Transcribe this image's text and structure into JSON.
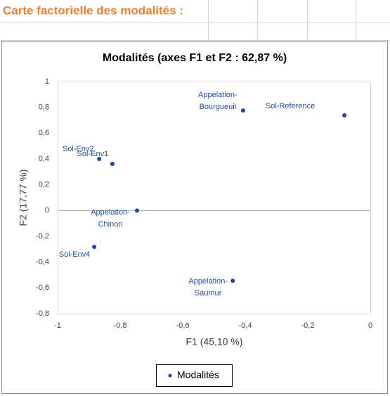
{
  "sheet_title": "Carte factorielle des modalités :",
  "chart_data": {
    "type": "scatter",
    "title": "Modalités (axes F1 et F2 : 62,87 %)",
    "x_label": "F1 (45,10 %)",
    "y_label": "F2 (17,77 %)",
    "series": [
      {
        "name": "Modalités",
        "color": "#1f3fbf",
        "x": [
          -0.407,
          -0.746,
          -0.44,
          -0.825,
          -0.867,
          -0.883,
          -0.083
        ],
        "values": [
          0.776,
          0.0,
          -0.544,
          0.362,
          0.4,
          -0.282,
          0.738
        ],
        "point_labels": [
          [
            "Appelation-",
            "Bourgueuil"
          ],
          [
            "Appelation-",
            "Chinon"
          ],
          [
            "Appelation-",
            "Saumur"
          ],
          [
            "Sol-Env1"
          ],
          [
            "Sol-Env2"
          ],
          [
            "Sol-Env4"
          ],
          [
            "Sol-Reference"
          ]
        ]
      }
    ],
    "xlim": [
      -1,
      0
    ],
    "xticks": [
      -1,
      {
        "value": -0.8,
        "label": "-0,8"
      },
      {
        "value": -0.6,
        "label": "-0,6"
      },
      {
        "value": -0.4,
        "label": "-0,4"
      },
      {
        "value": -0.2,
        "label": "-0,2"
      },
      0
    ],
    "ylim": [
      -0.8,
      1
    ],
    "yticks": [
      {
        "value": -0.8,
        "label": "-0,8"
      },
      {
        "value": -0.6,
        "label": "-0,6"
      },
      {
        "value": -0.4,
        "label": "-0,4"
      },
      {
        "value": -0.2,
        "label": "-0,2"
      },
      0,
      {
        "value": 0.2,
        "label": "0,2"
      },
      {
        "value": 0.4,
        "label": "0,4"
      },
      {
        "value": 0.6,
        "label": "0,6"
      },
      {
        "value": 0.8,
        "label": "0,8"
      },
      1
    ],
    "legend": "bottom"
  }
}
